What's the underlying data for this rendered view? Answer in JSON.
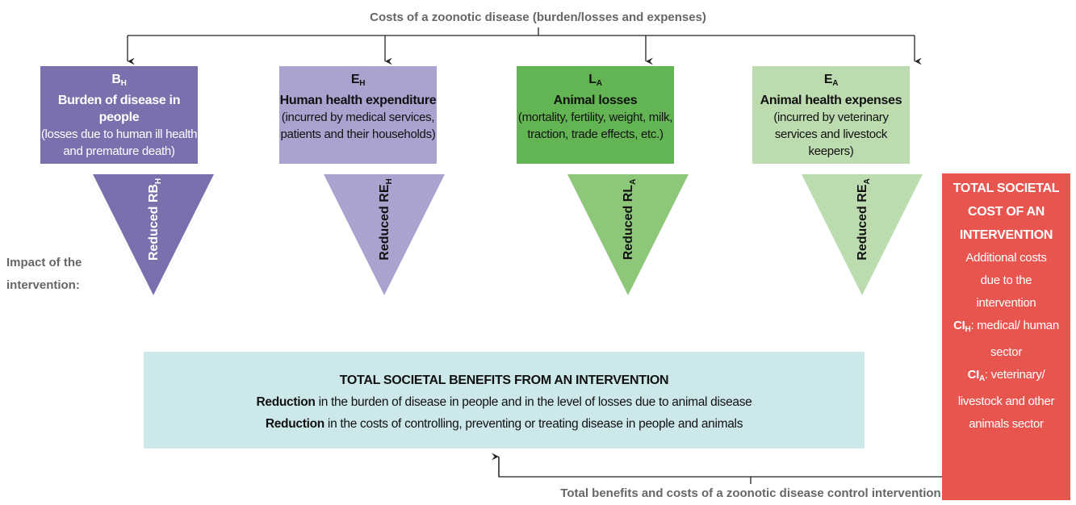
{
  "top_label": "Costs of a zoonotic disease (burden/losses and expenses)",
  "boxes": [
    {
      "symbol": {
        "main": "B",
        "sub": "H"
      },
      "title": "Burden of disease in people",
      "description": "(losses due to human ill health and premature death)"
    },
    {
      "symbol": {
        "main": "E",
        "sub": "H"
      },
      "title": "Human health expenditure",
      "description": "(incurred by medical services, patients and their households)"
    },
    {
      "symbol": {
        "main": "L",
        "sub": "A"
      },
      "title": "Animal losses",
      "description": "(mortality, fertility, weight, milk, traction, trade effects, etc.)"
    },
    {
      "symbol": {
        "main": "E",
        "sub": "A"
      },
      "title": "Animal health expenses",
      "description": "(incurred by veterinary services and livestock keepers)"
    }
  ],
  "triangles": [
    {
      "main": "Reduced RB",
      "sub": "H"
    },
    {
      "main": "Reduced RE",
      "sub": "H"
    },
    {
      "main": "Reduced RL",
      "sub": "A"
    },
    {
      "main": "Reduced RE",
      "sub": "A"
    }
  ],
  "impact_label": "Impact of the intervention:",
  "benefits": {
    "title": "TOTAL SOCIETAL BENEFITS FROM AN INTERVENTION",
    "lines": [
      {
        "bold": "Reduction",
        "text": " in the burden of disease in people and in the level of losses due to animal disease"
      },
      {
        "bold": "Reduction",
        "text": " in the costs of controlling, preventing or treating disease in people and animals"
      }
    ]
  },
  "cost": {
    "title": "TOTAL SOCIETAL COST OF AN INTERVENTION",
    "description": "Additional costs due to the intervention",
    "items": [
      {
        "main": "CI",
        "sub": "H",
        "text": ": medical/ human sector"
      },
      {
        "main": "CI",
        "sub": "A",
        "text": ": veterinary/ livestock and  other animals sector"
      }
    ]
  },
  "bottom_label": "Total benefits and costs of a zoonotic disease control intervention"
}
